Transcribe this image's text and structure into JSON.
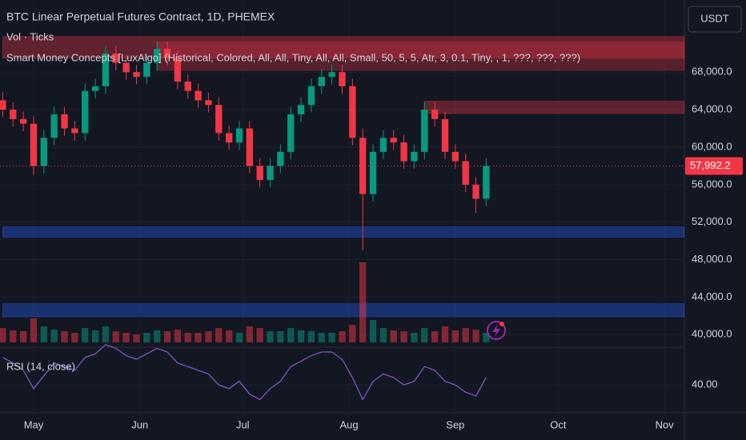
{
  "chart_data": {
    "type": "candlestick",
    "title": "BTC Linear Perpetual Futures Contract, 1D, PHEMEX",
    "indicators": [
      "Vol · Ticks",
      "Smart Money Concepts [LuxAlgo] (Historical, Colored, All, All, Tiny, All, All, Small, 50, 5, 5, Atr, 3, 0.1, Tiny, , 1, ???, ???, ???)"
    ],
    "rsi_title": "RSI (14, close)",
    "currency": "USDT",
    "up_color": "#089981",
    "down_color": "#f23645",
    "rsi_color": "#7e57c2",
    "grid": true,
    "x": [
      -9,
      -6,
      -3,
      0,
      3,
      6,
      9,
      12,
      15,
      18,
      21,
      24,
      27,
      30,
      33,
      36,
      39,
      42,
      45,
      48,
      51,
      54,
      57,
      60,
      63,
      66,
      69,
      72,
      75,
      78,
      81,
      84,
      87,
      90,
      93,
      96,
      99,
      102,
      105,
      108,
      111,
      114,
      117,
      120,
      123,
      126,
      129,
      132
    ],
    "open": [
      65000,
      64000,
      63000,
      62500,
      58000,
      61000,
      63500,
      62000,
      61500,
      66000,
      66500,
      70000,
      69000,
      68000,
      67500,
      69000,
      70500,
      69500,
      67000,
      66000,
      65000,
      64500,
      61500,
      60500,
      62000,
      58000,
      56500,
      58000,
      59500,
      63500,
      64500,
      66500,
      67500,
      68000,
      66500,
      61000,
      55000,
      59500,
      61000,
      60500,
      58500,
      59500,
      64000,
      63000,
      59500,
      58500,
      56000,
      54500
    ],
    "high": [
      65800,
      64800,
      63800,
      63300,
      61800,
      64300,
      64300,
      62800,
      66800,
      67300,
      70800,
      70800,
      69800,
      68800,
      69800,
      71300,
      71300,
      70300,
      67800,
      66800,
      65800,
      65300,
      62300,
      62800,
      62800,
      58800,
      58800,
      60300,
      64300,
      65300,
      67300,
      68300,
      68800,
      68800,
      67300,
      62000,
      60300,
      61800,
      61800,
      61300,
      60300,
      64800,
      64800,
      63800,
      60300,
      59300,
      56800,
      58800
    ],
    "low": [
      63200,
      62200,
      61700,
      57000,
      57200,
      60200,
      61200,
      60700,
      60700,
      65200,
      65700,
      68200,
      67200,
      66700,
      66700,
      68200,
      68700,
      66200,
      65200,
      64200,
      63700,
      60700,
      59700,
      59700,
      57200,
      55700,
      55700,
      57200,
      58700,
      62700,
      63700,
      65700,
      66700,
      65700,
      60200,
      49000,
      54200,
      58700,
      59700,
      57700,
      57700,
      58700,
      62200,
      58700,
      57700,
      55200,
      53000,
      53700
    ],
    "close": [
      64000,
      63000,
      62500,
      58000,
      61000,
      63500,
      62000,
      61500,
      66000,
      66500,
      70000,
      69000,
      68000,
      67500,
      69000,
      70500,
      69500,
      67000,
      66000,
      65000,
      64500,
      61500,
      60500,
      62000,
      58000,
      56500,
      58000,
      59500,
      63500,
      64500,
      66500,
      67500,
      68000,
      66500,
      61000,
      55000,
      59500,
      61000,
      60500,
      58500,
      59500,
      64000,
      63000,
      59500,
      58500,
      56000,
      54500,
      58000
    ],
    "volume": [
      18,
      15,
      14,
      30,
      20,
      16,
      14,
      12,
      18,
      15,
      20,
      14,
      12,
      10,
      12,
      15,
      14,
      16,
      12,
      12,
      14,
      18,
      15,
      12,
      20,
      18,
      14,
      14,
      18,
      15,
      14,
      12,
      12,
      14,
      22,
      100,
      28,
      18,
      15,
      14,
      12,
      18,
      14,
      20,
      15,
      18,
      16,
      12
    ],
    "rsi": [
      55,
      52,
      48,
      38,
      45,
      52,
      50,
      48,
      55,
      57,
      62,
      60,
      56,
      54,
      57,
      60,
      58,
      52,
      50,
      48,
      46,
      40,
      38,
      42,
      35,
      32,
      38,
      42,
      50,
      53,
      56,
      58,
      58,
      54,
      44,
      32,
      42,
      46,
      44,
      40,
      42,
      50,
      48,
      42,
      40,
      36,
      34,
      44
    ],
    "xlim": [
      -9.8,
      189.8
    ],
    "xticks": [
      {
        "value": 0,
        "label": "May"
      },
      {
        "value": 31,
        "label": "Jun"
      },
      {
        "value": 61,
        "label": "Jul"
      },
      {
        "value": 92,
        "label": "Aug"
      },
      {
        "value": 123,
        "label": "Sep"
      },
      {
        "value": 153,
        "label": "Oct"
      },
      {
        "value": 184,
        "label": "Nov"
      }
    ],
    "ylim": [
      39000,
      75700
    ],
    "yticks": [
      {
        "value": 40000,
        "label": "40,000.0"
      },
      {
        "value": 44000,
        "label": "44,000.0"
      },
      {
        "value": 48000,
        "label": "48,000.0"
      },
      {
        "value": 52000,
        "label": "52,000.0"
      },
      {
        "value": 56000,
        "label": "56,000.0"
      },
      {
        "value": 60000,
        "label": "60,000.0"
      },
      {
        "value": 64000,
        "label": "64,000.0"
      },
      {
        "value": 68000,
        "label": "68,000.0"
      }
    ],
    "rsi_ylim": [
      23,
      58
    ],
    "rsi_yticks": [
      {
        "value": 40,
        "label": "40.00"
      }
    ],
    "price_label": {
      "value": 57992.2,
      "label": "57,992.2"
    },
    "zones": [
      {
        "top": 71800,
        "bottom": 69500,
        "start": -9,
        "color": "rgba(242,54,69,0.35)"
      },
      {
        "top": 71200,
        "bottom": 68200,
        "start": 36,
        "color": "rgba(242,54,69,0.3)"
      },
      {
        "top": 64900,
        "bottom": 63600,
        "start": 114,
        "color": "rgba(242,54,69,0.35)"
      },
      {
        "top": 51500,
        "bottom": 50400,
        "start": -9,
        "color": "rgba(41,98,255,0.35)"
      },
      {
        "top": 43300,
        "bottom": 41900,
        "start": -9,
        "color": "rgba(41,98,255,0.35)"
      }
    ]
  }
}
